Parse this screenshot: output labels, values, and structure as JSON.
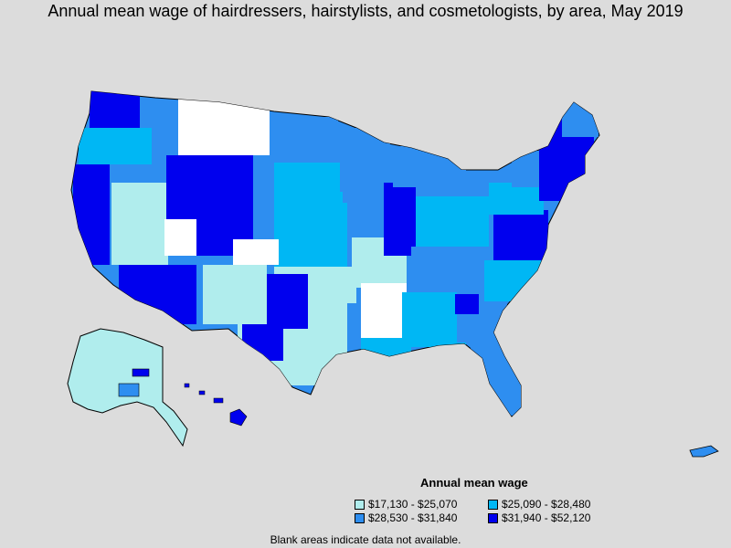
{
  "title": "Annual mean wage of hairdressers, hairstylists, and cosmetologists, by area, May 2019",
  "legend": {
    "title": "Annual mean wage",
    "items": [
      {
        "label": "$17,130 - $25,070",
        "color": "#b0eded"
      },
      {
        "label": "$25,090 - $28,480",
        "color": "#00b7f4"
      },
      {
        "label": "$28,530 - $31,840",
        "color": "#2e8ef0"
      },
      {
        "label": "$31,940 - $52,120",
        "color": "#0000ee"
      }
    ]
  },
  "footnote": "Blank areas indicate data not available.",
  "colors": {
    "background": "#dcdcdc",
    "no_data": "#ffffff",
    "border": "#000000"
  }
}
